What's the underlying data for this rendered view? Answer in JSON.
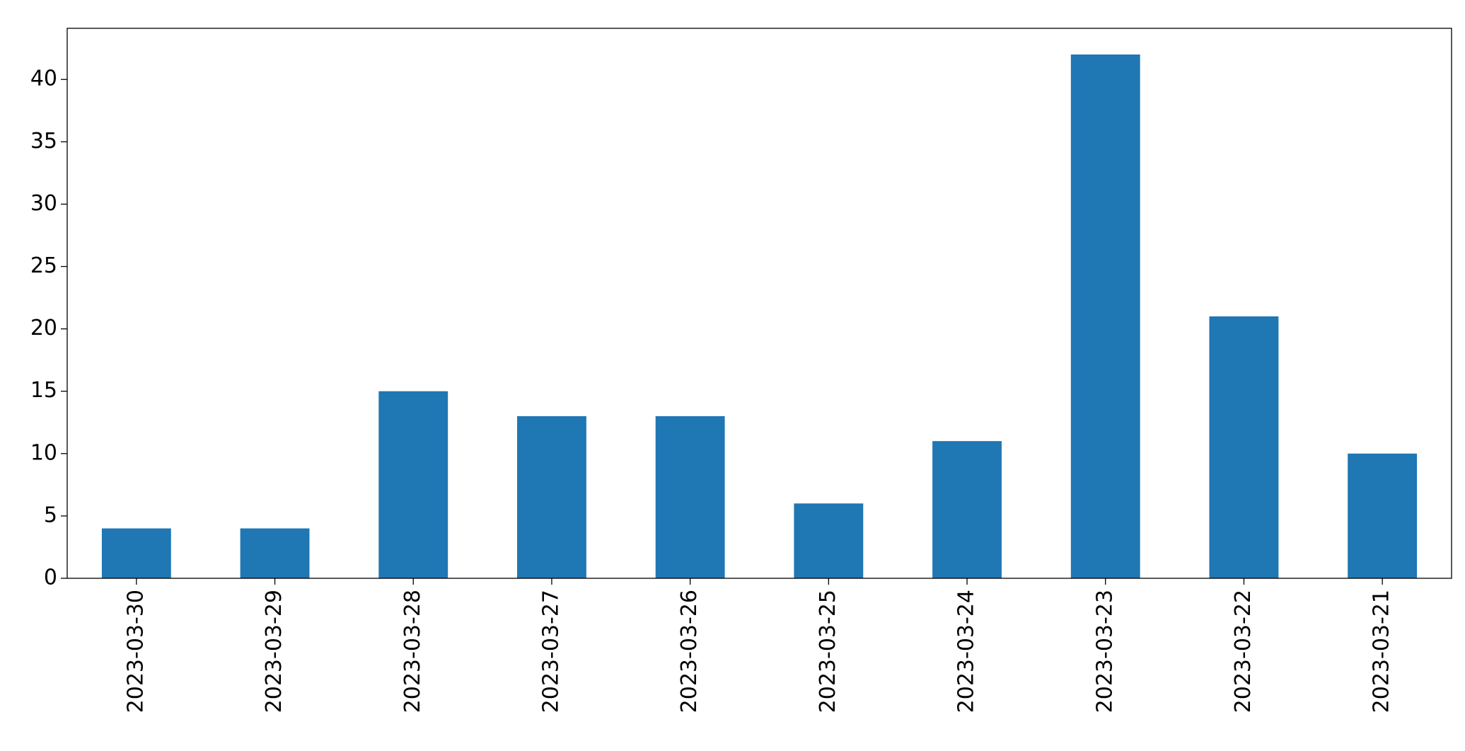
{
  "chart_data": {
    "type": "bar",
    "categories": [
      "2023-03-30",
      "2023-03-29",
      "2023-03-28",
      "2023-03-27",
      "2023-03-26",
      "2023-03-25",
      "2023-03-24",
      "2023-03-23",
      "2023-03-22",
      "2023-03-21"
    ],
    "values": [
      4,
      4,
      15,
      13,
      13,
      6,
      11,
      42,
      21,
      10
    ],
    "color": "#1f77b4",
    "ylim": [
      0,
      44.1
    ],
    "yticks": [
      0,
      5,
      10,
      15,
      20,
      25,
      30,
      35,
      40
    ],
    "grid": false
  }
}
